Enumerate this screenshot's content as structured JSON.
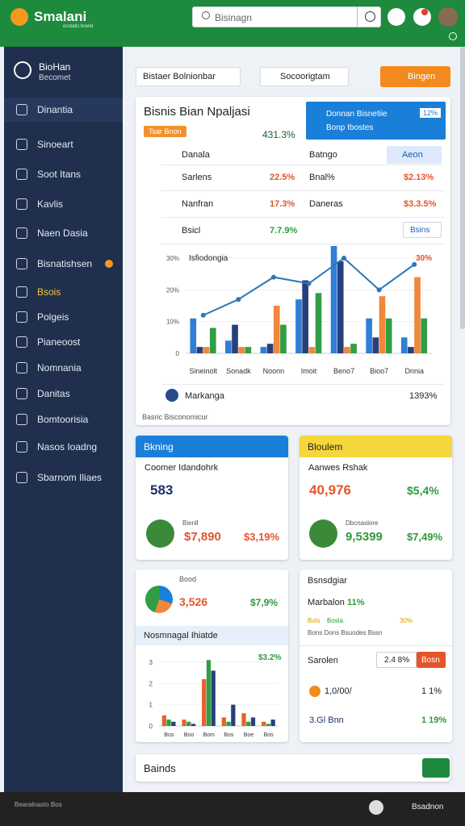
{
  "header": {
    "brand": "Smalani",
    "brand_sub": "ecstatic brand",
    "search_placeholder": "Bisinagn"
  },
  "sidebar": {
    "profile_name": "BioHan",
    "profile_sub": "Becomet",
    "items": [
      "Dinantia",
      "Sinoeart",
      "Soot Itans",
      "Kavlis",
      "Naen Dasia",
      "Bisnatishsen",
      "Bsois",
      "Polgeis",
      "Pianeoost",
      "Nomnania",
      "Danitas",
      "Bomtoorisia",
      "Nasos Ioadng",
      "Sbarnom Iliaes"
    ]
  },
  "toolbar": {
    "select1": "Bistaer Bolnionbar",
    "select2": "Socoorigtam",
    "button": "Bingen"
  },
  "main_card": {
    "title": "Bisnis Bian Npaljasi",
    "badge": "Tsar Bnon",
    "stat": "431.3%",
    "info_title": "Donnan Bisnetiie",
    "info_badge": "12%",
    "info_sub": "Bonp Ibostes",
    "table_head": [
      "Danala",
      "Batngo"
    ],
    "head_button": "Aeon",
    "rows": [
      [
        "Sarlens",
        "22.5%",
        "Bnal%",
        "$2.13%"
      ],
      [
        "Nanfran",
        "17.3%",
        "Daneras",
        "$3.3.5%"
      ],
      [
        "Bsicl",
        "7.7.9%"
      ]
    ],
    "dropdown": "Bsins",
    "chart": {
      "type": "bar",
      "title": "Isfiodongia",
      "categories": [
        "Sineinolt",
        "Sonadk",
        "Noonn",
        "Imoit",
        "Beno7",
        "Bioo7",
        "Dnnia"
      ],
      "series": [
        {
          "color": "#2f7fd6",
          "values": [
            11,
            4,
            2,
            17,
            34,
            11,
            5
          ]
        },
        {
          "color": "#27407a",
          "values": [
            2,
            9,
            3,
            23,
            29,
            5,
            2
          ]
        },
        {
          "color": "#f0873a",
          "values": [
            2,
            2,
            15,
            2,
            2,
            18,
            24
          ]
        },
        {
          "color": "#2f9e44",
          "values": [
            8,
            2,
            9,
            19,
            3,
            11,
            11
          ]
        }
      ],
      "line": {
        "color": "#2a76b8",
        "values": [
          12,
          17,
          24,
          22,
          30,
          20,
          28
        ]
      },
      "ylim": [
        0,
        30
      ],
      "yticks": [
        {
          "value": 0,
          "label": "0"
        },
        {
          "value": 10,
          "label": "10%"
        },
        {
          "value": 20,
          "label": "20%"
        },
        {
          "value": 30,
          "label": "30%"
        }
      ],
      "peak_label": "30%"
    },
    "summary_label": "Markanga",
    "summary_value": "1393%",
    "footer": "Basric Bisconomicur"
  },
  "card_blue": {
    "title": "Bkning",
    "subtitle": "Coomer Idandohrk",
    "value": "583",
    "item_label": "Bienll",
    "item_value": "$7,890",
    "item_change": "$3,19%"
  },
  "card_yellow": {
    "title": "Bloulem",
    "subtitle": "Aanwes Rshak",
    "value": "40,976",
    "change": "$5,4%",
    "item_label": "Dbcnaslore",
    "item_value": "9,5399",
    "item_change": "$7,49%"
  },
  "mini_card": {
    "label": "Bood",
    "value": "3,526",
    "change": "$7,9%",
    "section": "Nosmnagal Ihiatde",
    "corner": "$3.2%",
    "chart": {
      "type": "bar",
      "categories": [
        "Bos",
        "Boo",
        "Bom",
        "Bos",
        "Boe",
        "Bos"
      ],
      "series": [
        {
          "color": "#e4642a",
          "values": [
            0.5,
            0.3,
            2.2,
            0.4,
            0.6,
            0.2
          ]
        },
        {
          "color": "#2f9e44",
          "values": [
            0.3,
            0.2,
            3.1,
            0.2,
            0.2,
            0.1
          ]
        },
        {
          "color": "#27407a",
          "values": [
            0.2,
            0.1,
            2.6,
            1,
            0.4,
            0.3
          ]
        }
      ],
      "ylim": [
        0,
        3.2
      ],
      "yticks": [
        0,
        1,
        2,
        3
      ]
    }
  },
  "side_card": {
    "title": "Bsnsdgiar",
    "line1": "Marbalon",
    "line1_value": "11%",
    "legend": [
      "Bols",
      "Bosla",
      "30%"
    ],
    "legend2": "Bons Dons Bsuodes Bssn",
    "section": "Sarolen",
    "input": "2.4 8%",
    "button": "Bosn",
    "rows": [
      [
        "1,0/00/",
        "1 1%"
      ],
      [
        "3.Gl Bnn",
        "1 19%"
      ]
    ]
  },
  "bottom_card": {
    "title": "Bainds"
  },
  "footer": {
    "left": "Bearalnasto Bos",
    "right": "Bsadnon"
  }
}
